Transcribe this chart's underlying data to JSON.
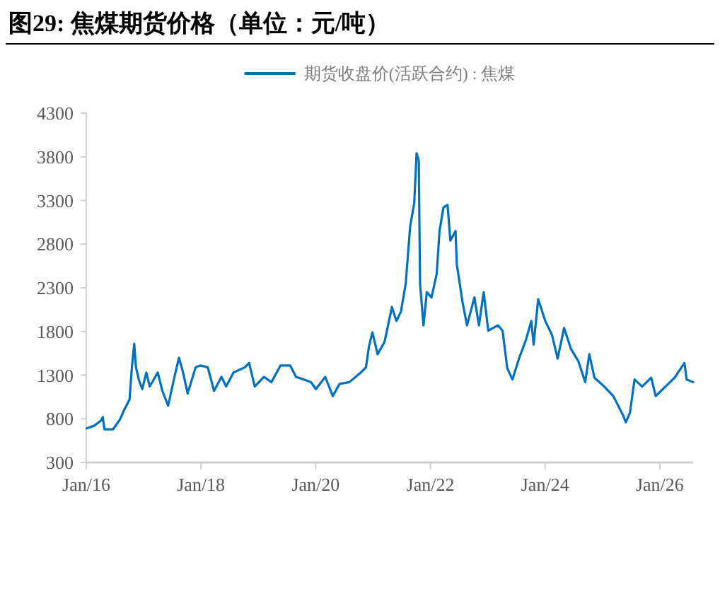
{
  "chart_data": {
    "type": "line",
    "title": "图29:  焦煤期货价格（单位：元/吨）",
    "legend": "top",
    "x": [
      "2016-01-04",
      "2016-02-20",
      "2016-04-04",
      "2016-04-15",
      "2016-04-26",
      "2016-06-20",
      "2016-08-02",
      "2016-09-01",
      "2016-10-03",
      "2016-10-18",
      "2016-11-02",
      "2016-11-13",
      "2016-12-01",
      "2016-12-23",
      "2017-01-18",
      "2017-02-09",
      "2017-04-01",
      "2017-04-30",
      "2017-06-06",
      "2017-07-16",
      "2017-08-14",
      "2017-09-09",
      "2017-10-08",
      "2017-11-28",
      "2017-12-27",
      "2018-02-13",
      "2018-03-25",
      "2018-05-11",
      "2018-06-10",
      "2018-07-27",
      "2018-10-08",
      "2018-11-03",
      "2018-12-09",
      "2019-02-06",
      "2019-03-25",
      "2019-05-22",
      "2019-07-23",
      "2019-08-29",
      "2019-10-19",
      "2019-12-02",
      "2020-01-02",
      "2020-03-02",
      "2020-04-19",
      "2020-06-01",
      "2020-08-03",
      "2020-10-15",
      "2020-11-17",
      "2020-12-06",
      "2020-12-28",
      "2021-01-30",
      "2021-03-15",
      "2021-05-01",
      "2021-05-30",
      "2021-06-28",
      "2021-07-28",
      "2021-08-25",
      "2021-09-20",
      "2021-10-05",
      "2021-10-19",
      "2021-10-27",
      "2021-11-18",
      "2021-12-09",
      "2022-01-08",
      "2022-02-10",
      "2022-02-28",
      "2022-03-25",
      "2022-04-20",
      "2022-05-08",
      "2022-06-10",
      "2022-06-18",
      "2022-07-24",
      "2022-08-22",
      "2022-10-08",
      "2022-11-06",
      "2022-12-06",
      "2023-01-04",
      "2023-03-07",
      "2023-04-05",
      "2023-05-05",
      "2023-06-07",
      "2023-07-19",
      "2023-09-02",
      "2023-10-05",
      "2023-10-20",
      "2023-11-18",
      "2024-01-02",
      "2024-02-14",
      "2024-03-21",
      "2024-05-01",
      "2024-06-14",
      "2024-07-31",
      "2024-09-13",
      "2024-10-09",
      "2024-11-11",
      "2025-01-12",
      "2025-03-11",
      "2025-05-12",
      "2025-05-30",
      "2025-06-25",
      "2025-07-24",
      "2025-09-10",
      "2025-11-07",
      "2025-12-06",
      "2026-02-06",
      "2026-04-05",
      "2026-06-07",
      "2026-06-21",
      "2026-07-31"
    ],
    "series": [
      {
        "name": "期货收盘价(活跃合约) : 焦煤",
        "color": "#0070c0",
        "values": [
          690,
          720,
          780,
          820,
          680,
          680,
          790,
          910,
          1020,
          1390,
          1660,
          1390,
          1250,
          1140,
          1330,
          1170,
          1330,
          1120,
          950,
          1280,
          1500,
          1330,
          1090,
          1390,
          1410,
          1390,
          1120,
          1280,
          1170,
          1330,
          1390,
          1440,
          1170,
          1280,
          1220,
          1410,
          1410,
          1280,
          1250,
          1220,
          1140,
          1280,
          1060,
          1200,
          1220,
          1330,
          1390,
          1630,
          1790,
          1540,
          1680,
          2080,
          1920,
          2030,
          2350,
          3000,
          3270,
          3840,
          3760,
          2350,
          1870,
          2250,
          2190,
          2460,
          2950,
          3220,
          3250,
          2840,
          2950,
          2570,
          2140,
          1870,
          2190,
          1870,
          2250,
          1810,
          1870,
          1810,
          1380,
          1250,
          1490,
          1710,
          1920,
          1650,
          2170,
          1920,
          1760,
          1490,
          1840,
          1600,
          1460,
          1220,
          1540,
          1270,
          1170,
          1060,
          840,
          760,
          870,
          1250,
          1170,
          1270,
          1060,
          1170,
          1270,
          1440,
          1250,
          1220
        ]
      }
    ],
    "xlim": [
      "2016-01-01",
      "2026-08-01"
    ],
    "xticks": [
      {
        "value": "2016-01-01",
        "label": "Jan/16"
      },
      {
        "value": "2018-01-01",
        "label": "Jan/18"
      },
      {
        "value": "2020-01-01",
        "label": "Jan/20"
      },
      {
        "value": "2022-01-01",
        "label": "Jan/22"
      },
      {
        "value": "2024-01-01",
        "label": "Jan/24"
      },
      {
        "value": "2026-01-01",
        "label": "Jan/26"
      }
    ],
    "ylim": [
      300,
      4300
    ],
    "yticks": [
      300,
      800,
      1300,
      1800,
      2300,
      2800,
      3300,
      3800,
      4300
    ]
  }
}
